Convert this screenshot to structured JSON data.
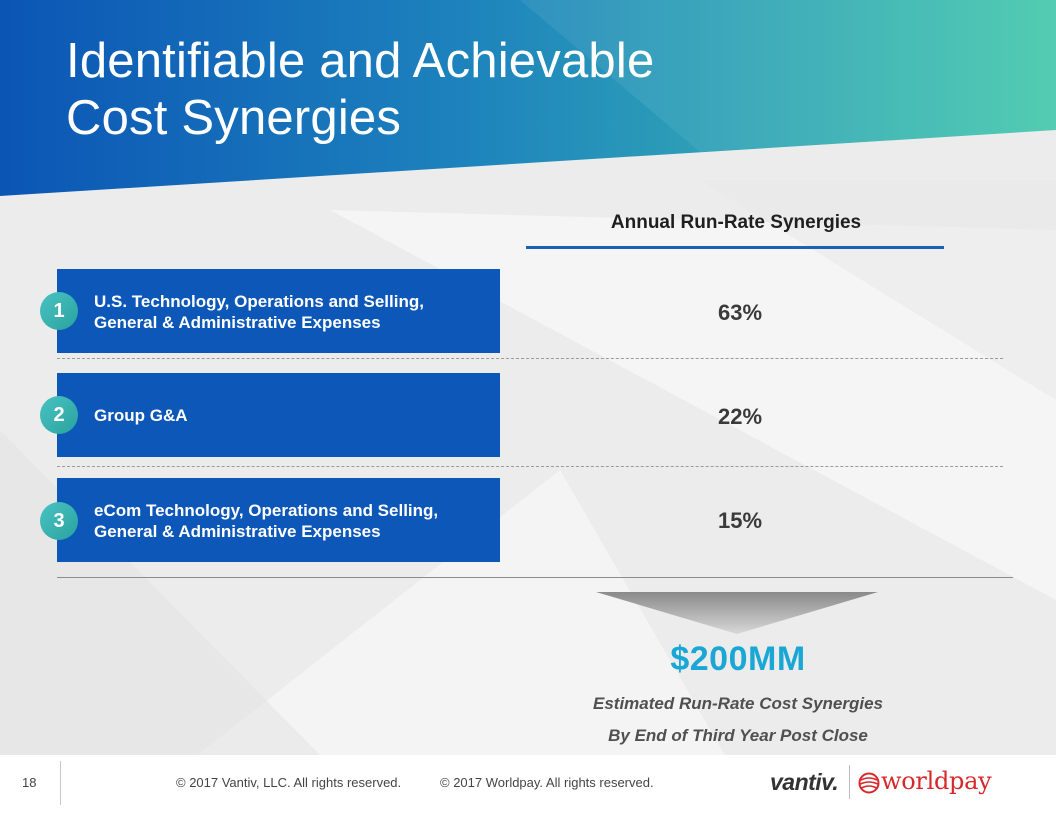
{
  "slide": {
    "title_lines": [
      "Identifiable and Achievable",
      "Cost Synergies"
    ],
    "column_header": "Annual Run-Rate Synergies",
    "rows": [
      {
        "number": "1",
        "label_lines": [
          "U.S. Technology, Operations and Selling,",
          "General & Administrative Expenses"
        ],
        "percent": "63%"
      },
      {
        "number": "2",
        "label_lines": [
          "Group G&A"
        ],
        "percent": "22%"
      },
      {
        "number": "3",
        "label_lines": [
          "eCom Technology, Operations and Selling,",
          "General & Administrative Expenses"
        ],
        "percent": "15%"
      }
    ],
    "total": "$200MM",
    "subtitle_lines": [
      "Estimated Run-Rate Cost Synergies",
      "By End of Third Year Post Close"
    ]
  },
  "footer": {
    "page_number": "18",
    "copyright_vantiv": "© 2017 Vantiv, LLC.  All rights reserved.",
    "copyright_worldpay": "© 2017 Worldpay.  All rights reserved.",
    "logo_vantiv": "vantiv.",
    "logo_worldpay": "worldpay"
  },
  "colors": {
    "header_blue": "#0b55b5",
    "header_teal": "#45c9ad",
    "row_fill": "#0d57b8",
    "badge_teal": "#3bb4b0",
    "total_blue": "#1aa7d6",
    "worldpay_red": "#d8282a"
  }
}
